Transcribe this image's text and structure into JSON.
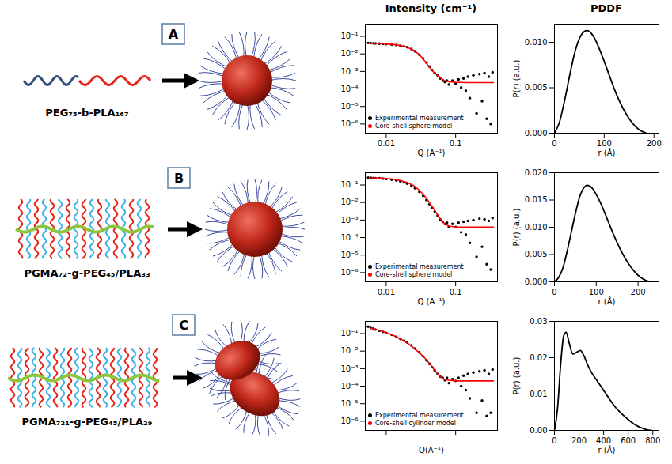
{
  "headers": [
    "Intensity (cm⁻¹)",
    "PDDF"
  ],
  "panels": [
    {
      "letter": "A",
      "polymer": "PEG₇₅-b-PLA₁₆₇"
    },
    {
      "letter": "B",
      "polymer": "PGMA₇₂-g-PEG₄₅/PLA₃₃"
    },
    {
      "letter": "C",
      "polymer": "PGMA₇₂₁-g-PEG₄₅/PLA₂₉"
    }
  ],
  "chart_data": [
    {
      "type": "scatter",
      "x_label": "Q (A⁻¹)",
      "log": true,
      "xlim": [
        0.005,
        0.4
      ],
      "xticks": [
        0.01,
        0.1
      ],
      "ylim": [
        3e-07,
        0.5
      ],
      "yticks": [
        {
          "value": 1e-06,
          "label": "10⁻⁶"
        },
        {
          "value": 1e-05,
          "label": "10⁻⁵"
        },
        {
          "value": 0.0001,
          "label": "10⁻⁴"
        },
        {
          "value": 0.001,
          "label": "10⁻³"
        },
        {
          "value": 0.01,
          "label": "10⁻²"
        },
        {
          "value": 0.1,
          "label": "10⁻¹"
        }
      ],
      "legend": "lower left",
      "series": [
        {
          "name": "Experimental measurement",
          "type": "scatter",
          "marker": "circle",
          "color": "#000000",
          "x": [
            0.0055,
            0.006,
            0.0065,
            0.007,
            0.008,
            0.009,
            0.01,
            0.012,
            0.014,
            0.016,
            0.018,
            0.02,
            0.023,
            0.026,
            0.03,
            0.034,
            0.038,
            0.042,
            0.046,
            0.05,
            0.055,
            0.06,
            0.065,
            0.07,
            0.075,
            0.08,
            0.09,
            0.1,
            0.11,
            0.12,
            0.13,
            0.14,
            0.15,
            0.16,
            0.18,
            0.2,
            0.22,
            0.24,
            0.26,
            0.28,
            0.3,
            0.32,
            0.34
          ],
          "values": [
            0.042,
            0.041,
            0.04,
            0.039,
            0.038,
            0.037,
            0.036,
            0.034,
            0.032,
            0.029,
            0.027,
            0.024,
            0.019,
            0.014,
            0.009,
            0.0055,
            0.0032,
            0.0019,
            0.0012,
            0.0008,
            0.0006,
            0.0004,
            0.0003,
            0.00025,
            0.0003,
            0.00018,
            0.0003,
            0.0002,
            0.00035,
            0.00012,
            0.0004,
            8e-05,
            0.0005,
            3e-05,
            0.0006,
            4e-06,
            0.0007,
            2e-05,
            0.0008,
            2e-06,
            0.0005,
            1e-06,
            0.0009
          ]
        },
        {
          "name": "Core-shell sphere model",
          "type": "line",
          "marker": "circle",
          "color": "#ff0000",
          "x": [
            0.006,
            0.008,
            0.01,
            0.013,
            0.016,
            0.02,
            0.025,
            0.03,
            0.035,
            0.04,
            0.045,
            0.05,
            0.055,
            0.06,
            0.065,
            0.07,
            0.08,
            0.1,
            0.15,
            0.2,
            0.3,
            0.35
          ],
          "values": [
            0.04,
            0.039,
            0.037,
            0.034,
            0.03,
            0.024,
            0.016,
            0.009,
            0.0045,
            0.0022,
            0.0012,
            0.0008,
            0.0006,
            0.00045,
            0.00035,
            0.0003,
            0.00026,
            0.00024,
            0.00023,
            0.00023,
            0.00023,
            0.00023
          ]
        }
      ]
    },
    {
      "type": "line",
      "x_label": "r (Å)",
      "y_label": "P(r) (a.u.)",
      "color": "#000000",
      "xlim": [
        0,
        210
      ],
      "xticks": [
        0,
        100,
        200
      ],
      "ylim": [
        0,
        0.012
      ],
      "yticks": [
        {
          "value": 0,
          "label": "0.000"
        },
        {
          "value": 0.005,
          "label": "0.005"
        },
        {
          "value": 0.01,
          "label": "0.010"
        }
      ],
      "x": [
        0,
        10,
        20,
        30,
        40,
        50,
        60,
        65,
        70,
        80,
        90,
        100,
        110,
        120,
        130,
        140,
        150,
        160,
        170,
        180,
        185
      ],
      "values": [
        0,
        0.0012,
        0.0035,
        0.0062,
        0.0087,
        0.0104,
        0.0112,
        0.0113,
        0.0112,
        0.0105,
        0.0093,
        0.0079,
        0.0064,
        0.0049,
        0.0036,
        0.0025,
        0.0016,
        0.0009,
        0.0004,
        0.0001,
        0
      ]
    },
    {
      "type": "scatter",
      "x_label": "Q (A⁻¹)",
      "log": true,
      "xlim": [
        0.005,
        0.4
      ],
      "xticks": [
        0.01,
        0.1
      ],
      "ylim": [
        3e-07,
        0.5
      ],
      "yticks": [
        {
          "value": 1e-06,
          "label": "10⁻⁶"
        },
        {
          "value": 1e-05,
          "label": "10⁻⁵"
        },
        {
          "value": 0.0001,
          "label": "10⁻⁴"
        },
        {
          "value": 0.001,
          "label": "10⁻³"
        },
        {
          "value": 0.01,
          "label": "10⁻²"
        },
        {
          "value": 0.1,
          "label": "10⁻¹"
        }
      ],
      "legend": "lower left",
      "series": [
        {
          "name": "Experimental measurement",
          "type": "scatter",
          "marker": "circle",
          "color": "#000000",
          "x": [
            0.0055,
            0.006,
            0.0065,
            0.007,
            0.008,
            0.009,
            0.01,
            0.012,
            0.014,
            0.016,
            0.018,
            0.02,
            0.023,
            0.026,
            0.03,
            0.034,
            0.038,
            0.042,
            0.046,
            0.05,
            0.055,
            0.06,
            0.065,
            0.07,
            0.075,
            0.08,
            0.09,
            0.1,
            0.11,
            0.12,
            0.13,
            0.14,
            0.15,
            0.16,
            0.18,
            0.2,
            0.22,
            0.24,
            0.26,
            0.28,
            0.3,
            0.32,
            0.34
          ],
          "values": [
            0.26,
            0.255,
            0.25,
            0.245,
            0.24,
            0.23,
            0.22,
            0.2,
            0.18,
            0.16,
            0.14,
            0.12,
            0.09,
            0.065,
            0.04,
            0.024,
            0.014,
            0.008,
            0.005,
            0.003,
            0.0018,
            0.0011,
            0.0008,
            0.0006,
            0.0007,
            0.0004,
            0.0006,
            0.0004,
            0.0007,
            0.0002,
            0.0008,
            0.00015,
            0.0009,
            5e-05,
            0.001,
            8e-06,
            0.0012,
            3e-05,
            0.0011,
            3e-06,
            0.0009,
            1.5e-06,
            0.0013
          ]
        },
        {
          "name": "Core-shell sphere model",
          "type": "line",
          "marker": "circle",
          "color": "#ff0000",
          "x": [
            0.006,
            0.008,
            0.01,
            0.013,
            0.016,
            0.02,
            0.025,
            0.03,
            0.035,
            0.04,
            0.045,
            0.05,
            0.055,
            0.06,
            0.065,
            0.07,
            0.08,
            0.1,
            0.15,
            0.2,
            0.3,
            0.35
          ],
          "values": [
            0.255,
            0.25,
            0.235,
            0.21,
            0.18,
            0.14,
            0.09,
            0.05,
            0.026,
            0.013,
            0.0065,
            0.0035,
            0.002,
            0.0012,
            0.0008,
            0.0006,
            0.00045,
            0.0004,
            0.0004,
            0.0004,
            0.0004,
            0.0004
          ]
        }
      ]
    },
    {
      "type": "line",
      "x_label": "r (Å)",
      "y_label": "P(r) (a.u.)",
      "color": "#000000",
      "xlim": [
        0,
        250
      ],
      "xticks": [
        0,
        100,
        200
      ],
      "ylim": [
        0,
        0.02
      ],
      "yticks": [
        {
          "value": 0,
          "label": "0.000"
        },
        {
          "value": 0.005,
          "label": "0.005"
        },
        {
          "value": 0.01,
          "label": "0.010"
        },
        {
          "value": 0.015,
          "label": "0.015"
        },
        {
          "value": 0.02,
          "label": "0.020"
        }
      ],
      "x": [
        0,
        10,
        20,
        30,
        40,
        50,
        60,
        70,
        78,
        90,
        100,
        110,
        120,
        130,
        140,
        150,
        160,
        170,
        180,
        190,
        200,
        210,
        220,
        230,
        240
      ],
      "values": [
        0,
        0.0008,
        0.0025,
        0.0055,
        0.009,
        0.0125,
        0.0155,
        0.0172,
        0.0177,
        0.0172,
        0.016,
        0.0145,
        0.0127,
        0.0108,
        0.0089,
        0.0072,
        0.0056,
        0.0042,
        0.003,
        0.002,
        0.0012,
        0.0006,
        0.0002,
        5e-05,
        0
      ]
    },
    {
      "type": "scatter",
      "x_label": "Q(A⁻¹)",
      "log": true,
      "tick_labels": "y",
      "xlim": [
        0.005,
        0.4
      ],
      "xticks": [
        0.01,
        0.1
      ],
      "ylim": [
        3e-07,
        0.5
      ],
      "yticks": [
        {
          "value": 1e-06,
          "label": "10⁻⁶"
        },
        {
          "value": 1e-05,
          "label": "10⁻⁵"
        },
        {
          "value": 0.0001,
          "label": "10⁻⁴"
        },
        {
          "value": 0.001,
          "label": "10⁻³"
        },
        {
          "value": 0.01,
          "label": "10⁻²"
        },
        {
          "value": 0.1,
          "label": "10⁻¹"
        }
      ],
      "legend": "lower left",
      "series": [
        {
          "name": "Experimental measurement",
          "type": "scatter",
          "marker": "circle",
          "color": "#000000",
          "x": [
            0.0055,
            0.006,
            0.0065,
            0.007,
            0.008,
            0.009,
            0.01,
            0.012,
            0.014,
            0.016,
            0.018,
            0.02,
            0.023,
            0.026,
            0.03,
            0.034,
            0.038,
            0.042,
            0.046,
            0.05,
            0.055,
            0.06,
            0.065,
            0.07,
            0.075,
            0.08,
            0.09,
            0.1,
            0.11,
            0.12,
            0.13,
            0.14,
            0.15,
            0.16,
            0.18,
            0.2,
            0.22,
            0.24,
            0.26,
            0.28,
            0.3,
            0.32,
            0.34
          ],
          "values": [
            0.25,
            0.21,
            0.19,
            0.17,
            0.145,
            0.125,
            0.11,
            0.085,
            0.065,
            0.05,
            0.04,
            0.031,
            0.021,
            0.014,
            0.0085,
            0.005,
            0.003,
            0.0019,
            0.0012,
            0.0008,
            0.0005,
            0.00035,
            0.0003,
            0.00022,
            0.0003,
            0.00015,
            0.00025,
            0.0002,
            0.0003,
            0.0001,
            0.0004,
            6e-05,
            0.0005,
            2e-05,
            0.0006,
            3e-06,
            0.0007,
            1.5e-05,
            0.0008,
            2e-06,
            0.0005,
            3e-06,
            0.0009
          ]
        },
        {
          "name": "Core-shell cylinder model",
          "type": "line",
          "marker": "circle",
          "color": "#ff0000",
          "x": [
            0.006,
            0.008,
            0.01,
            0.013,
            0.016,
            0.02,
            0.025,
            0.03,
            0.035,
            0.04,
            0.045,
            0.05,
            0.055,
            0.06,
            0.065,
            0.07,
            0.08,
            0.1,
            0.15,
            0.2,
            0.3,
            0.35
          ],
          "values": [
            0.2,
            0.15,
            0.11,
            0.075,
            0.05,
            0.03,
            0.015,
            0.008,
            0.0045,
            0.0025,
            0.0014,
            0.0008,
            0.0005,
            0.00035,
            0.00028,
            0.00024,
            0.00022,
            0.0002,
            0.0002,
            0.0002,
            0.0002,
            0.0002
          ]
        }
      ]
    },
    {
      "type": "line",
      "x_label": "r (Å)",
      "y_label": "P(r) (a.u.)",
      "color": "#000000",
      "xlim": [
        0,
        850
      ],
      "xticks": [
        0,
        200,
        400,
        600,
        800
      ],
      "ylim": [
        0,
        0.03
      ],
      "yticks": [
        {
          "value": 0,
          "label": "0.00"
        },
        {
          "value": 0.01,
          "label": "0.01"
        },
        {
          "value": 0.02,
          "label": "0.02"
        },
        {
          "value": 0.03,
          "label": "0.03"
        }
      ],
      "x": [
        0,
        25,
        50,
        75,
        95,
        120,
        150,
        180,
        210,
        240,
        270,
        300,
        350,
        400,
        450,
        500,
        550,
        600,
        650,
        700,
        750,
        790
      ],
      "values": [
        0,
        0.006,
        0.018,
        0.026,
        0.027,
        0.024,
        0.021,
        0.0215,
        0.022,
        0.0205,
        0.018,
        0.016,
        0.0135,
        0.011,
        0.0085,
        0.0062,
        0.0045,
        0.003,
        0.0017,
        0.0008,
        0.0002,
        0
      ]
    }
  ]
}
